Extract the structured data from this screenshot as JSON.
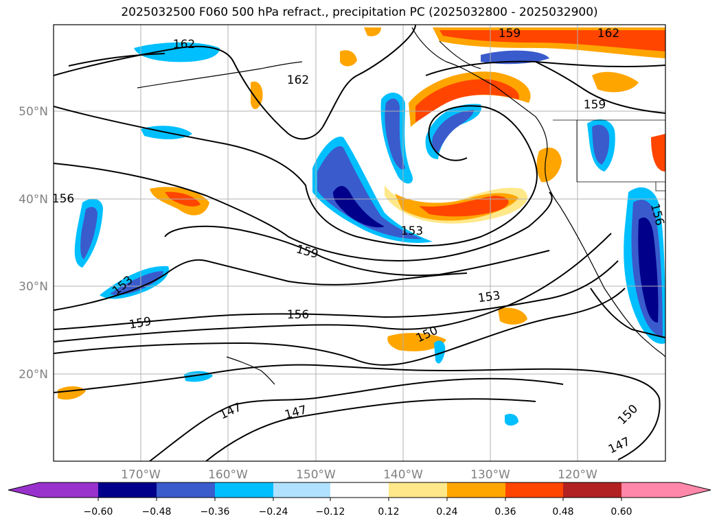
{
  "title": "2025032500 F060 500 hPa refract., precipitation PC (2025032800 - 2025032900)",
  "colors": {
    "frame": "#000000",
    "grid": "#b0b0b0",
    "contour": "#000000",
    "neg_scale": [
      "#9932cc",
      "#00008b",
      "#3a5bcc",
      "#00bfff",
      "#b0e2ff"
    ],
    "neutral": "#ffffff",
    "pos_scale": [
      "#ffe88a",
      "#ffa500",
      "#ff4500",
      "#b22222",
      "#ff88aa"
    ]
  },
  "map": {
    "lat_labels": [
      "50°N",
      "40°N",
      "30°N",
      "20°N"
    ],
    "lon_labels": [
      "170°W",
      "160°W",
      "150°W",
      "140°W",
      "130°W",
      "120°W"
    ],
    "contour_labels": [
      {
        "text": "162",
        "id": "c162a"
      },
      {
        "text": "162",
        "id": "c162b"
      },
      {
        "text": "159",
        "id": "c159a"
      },
      {
        "text": "162",
        "id": "c162c"
      },
      {
        "text": "159",
        "id": "c159b"
      },
      {
        "text": "156",
        "id": "c156a"
      },
      {
        "text": "153",
        "id": "c153a"
      },
      {
        "text": "159",
        "id": "c159c"
      },
      {
        "text": "153",
        "id": "c153b"
      },
      {
        "text": "156",
        "id": "c156b"
      },
      {
        "text": "153",
        "id": "c153c"
      },
      {
        "text": "159",
        "id": "c159d"
      },
      {
        "text": "150",
        "id": "c150a"
      },
      {
        "text": "147",
        "id": "c147a"
      },
      {
        "text": "147",
        "id": "c147b"
      },
      {
        "text": "150",
        "id": "c150b"
      },
      {
        "text": "147",
        "id": "c147c"
      },
      {
        "text": "156",
        "id": "c156c"
      }
    ]
  },
  "colorbar": {
    "ticks": [
      "−0.60",
      "−0.48",
      "−0.36",
      "−0.24",
      "−0.12",
      "0.12",
      "0.24",
      "0.36",
      "0.48",
      "0.60"
    ]
  }
}
